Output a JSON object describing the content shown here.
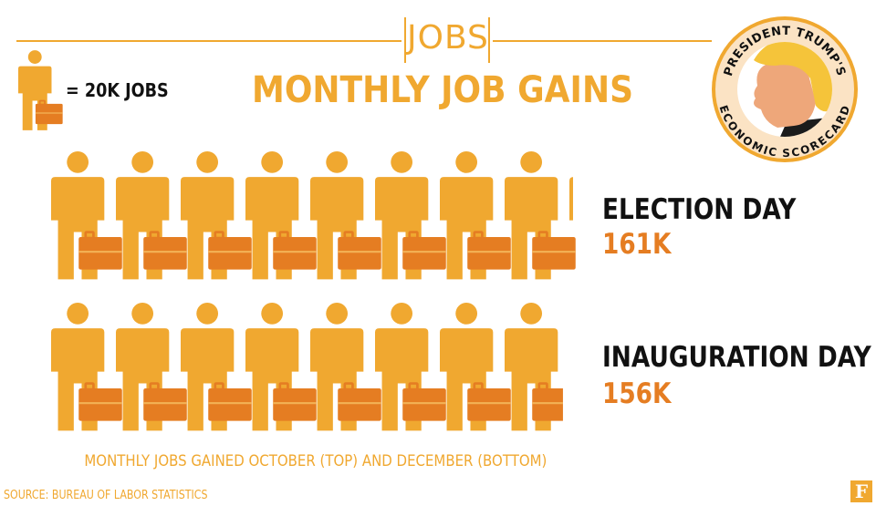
{
  "header": {
    "section_label": "JOBS",
    "title": "MONTHLY JOB GAINS"
  },
  "key": {
    "label": "= 20K JOBS",
    "icon": "worker-with-briefcase-icon"
  },
  "badge": {
    "top_text": "PRESIDENT TRUMP'S",
    "bottom_text": "ECONOMIC SCORECARD",
    "icon": "trump-portrait-icon"
  },
  "chart_data": {
    "type": "pictogram",
    "unit": 20,
    "unit_label": "20K JOBS",
    "series": [
      {
        "name": "ELECTION DAY",
        "value": 161,
        "value_label": "161K"
      },
      {
        "name": "INAUGURATION DAY",
        "value": 156,
        "value_label": "156K"
      }
    ],
    "caption": "MONTHLY JOBS GAINED OCTOBER (TOP) AND DECEMBER (BOTTOM)"
  },
  "source": "SOURCE: BUREAU OF LABOR STATISTICS",
  "brand": {
    "logo_letter": "F"
  },
  "colors": {
    "person": "#f0a830",
    "briefcase": "#e57d22",
    "value": "#e57d22",
    "label": "#111111",
    "badge_ring": "#fbe3c4",
    "badge_hair": "#f5c43a",
    "badge_face": "#eea77a"
  }
}
